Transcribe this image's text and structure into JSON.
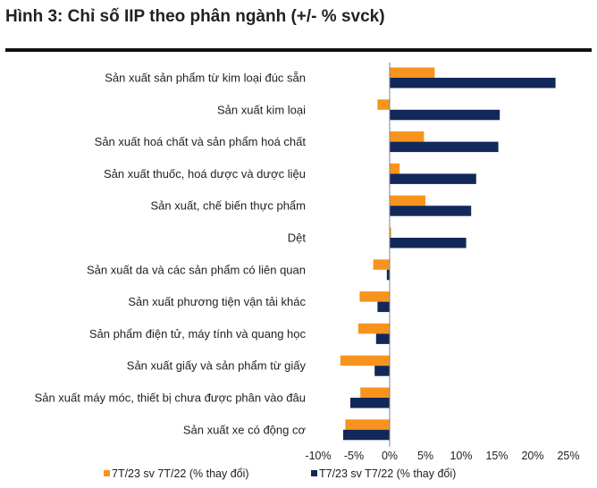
{
  "title": "Hình 3: Chỉ số IIP theo phân ngành (+/- % svck)",
  "colors": {
    "series1": "#F7941D",
    "series2": "#12285A",
    "axis": "#808080"
  },
  "chart_data": {
    "type": "bar",
    "orientation": "horizontal",
    "title": "Hình 3: Chỉ số IIP theo phân ngành (+/- % svck)",
    "categories": [
      "Sản xuất sản phẩm từ kim loại đúc sẵn",
      "Sản xuất kim loại",
      "Sản xuất hoá chất và sản phẩm hoá chất",
      "Sản xuất thuốc, hoá dược và dược liệu",
      "Sản xuất, chế biến thực phẩm",
      "Dệt",
      "Sản xuất da và các sản phẩm có liên quan",
      "Sản xuất phương tiện vận tải khác",
      "Sản phẩm điện tử, máy tính và quang học",
      "Sản xuất giấy và sản phẩm từ giấy",
      "Sản xuất máy móc, thiết bị chưa được phân vào đâu",
      "Sản xuất xe có động cơ"
    ],
    "series": [
      {
        "name": "7T/23 sv 7T/22 (% thay đổi)",
        "values": [
          6.3,
          -1.7,
          4.8,
          1.4,
          5.0,
          0.2,
          -2.3,
          -4.2,
          -4.4,
          -6.9,
          -4.1,
          -6.2
        ]
      },
      {
        "name": "T7/23 sv T7/22 (% thay đổi)",
        "values": [
          23.2,
          15.4,
          15.2,
          12.1,
          11.4,
          10.7,
          -0.4,
          -1.7,
          -1.9,
          -2.1,
          -5.5,
          -6.5
        ]
      }
    ],
    "xlim": [
      -10,
      25
    ],
    "xticks": [
      -10,
      -5,
      0,
      5,
      10,
      15,
      20,
      25
    ],
    "xtick_labels": [
      "-10%",
      "-5%",
      "0%",
      "5%",
      "10%",
      "15%",
      "20%",
      "25%"
    ],
    "legend_position": "bottom",
    "grid": false
  }
}
